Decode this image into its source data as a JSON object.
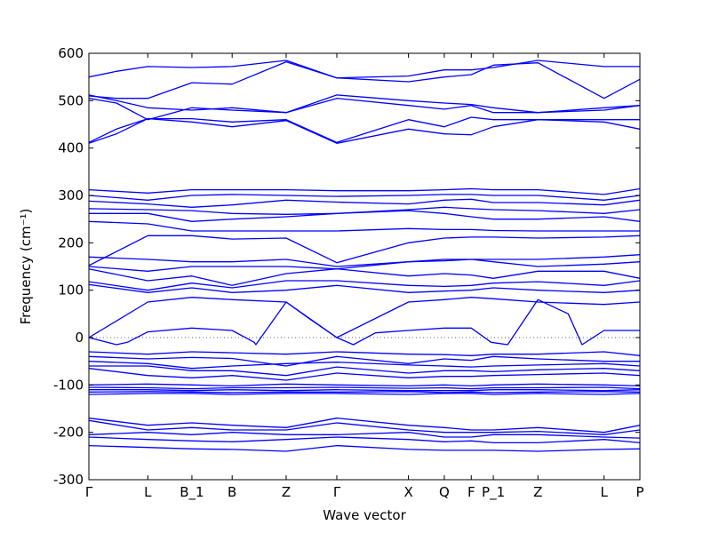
{
  "chart_data": {
    "type": "line",
    "xlabel": "Wave vector",
    "ylabel": "Frequency (cm⁻¹)",
    "ylim": [
      -300,
      600
    ],
    "yticks": [
      -300,
      -200,
      -100,
      0,
      100,
      200,
      300,
      400,
      500,
      600
    ],
    "x_ticks": [
      {
        "label": "Γ",
        "x": 0.0
      },
      {
        "label": "L",
        "x": 0.107
      },
      {
        "label": "B_1",
        "x": 0.187
      },
      {
        "label": "B",
        "x": 0.26
      },
      {
        "label": "Z",
        "x": 0.358
      },
      {
        "label": "Γ",
        "x": 0.45
      },
      {
        "label": "X",
        "x": 0.58
      },
      {
        "label": "Q",
        "x": 0.645
      },
      {
        "label": "F",
        "x": 0.694
      },
      {
        "label": "P_1",
        "x": 0.734
      },
      {
        "label": "Z",
        "x": 0.815
      },
      {
        "label": "L",
        "x": 0.935
      },
      {
        "label": "P",
        "x": 1.0
      }
    ],
    "zero_line": true,
    "grid": false,
    "line_color": "#0000ff",
    "series": [
      {
        "x": [
          0,
          0.05,
          0.107,
          0.187,
          0.26,
          0.358,
          0.45,
          0.58,
          0.645,
          0.694,
          0.734,
          0.815,
          0.935,
          1.0
        ],
        "y": [
          550,
          562,
          572,
          570,
          572,
          585,
          548,
          552,
          565,
          565,
          570,
          585,
          572,
          572
        ]
      },
      {
        "x": [
          0,
          0.05,
          0.107,
          0.187,
          0.26,
          0.358,
          0.45,
          0.58,
          0.645,
          0.694,
          0.734,
          0.815,
          0.935,
          1.0
        ],
        "y": [
          510,
          505,
          505,
          538,
          535,
          582,
          548,
          540,
          550,
          555,
          575,
          580,
          505,
          545
        ]
      },
      {
        "x": [
          0,
          0.05,
          0.107,
          0.187,
          0.26,
          0.358,
          0.45,
          0.58,
          0.645,
          0.694,
          0.734,
          0.815,
          0.935,
          1.0
        ],
        "y": [
          512,
          500,
          485,
          480,
          485,
          475,
          512,
          500,
          495,
          492,
          485,
          475,
          485,
          490
        ]
      },
      {
        "x": [
          0,
          0.05,
          0.107,
          0.187,
          0.26,
          0.358,
          0.45,
          0.58,
          0.645,
          0.694,
          0.734,
          0.815,
          0.935,
          1.0
        ],
        "y": [
          505,
          495,
          460,
          485,
          480,
          475,
          505,
          490,
          482,
          490,
          475,
          475,
          480,
          490
        ]
      },
      {
        "x": [
          0,
          0.05,
          0.107,
          0.187,
          0.26,
          0.358,
          0.45,
          0.58,
          0.645,
          0.694,
          0.734,
          0.815,
          0.935,
          1.0
        ],
        "y": [
          412,
          440,
          462,
          462,
          455,
          460,
          412,
          460,
          445,
          465,
          460,
          460,
          460,
          460
        ]
      },
      {
        "x": [
          0,
          0.05,
          0.107,
          0.187,
          0.26,
          0.358,
          0.45,
          0.58,
          0.645,
          0.694,
          0.734,
          0.815,
          0.935,
          1.0
        ],
        "y": [
          410,
          430,
          462,
          455,
          445,
          458,
          410,
          440,
          430,
          428,
          445,
          460,
          455,
          440
        ]
      },
      {
        "x": [
          0,
          0.107,
          0.187,
          0.26,
          0.358,
          0.45,
          0.58,
          0.645,
          0.694,
          0.734,
          0.815,
          0.935,
          1.0
        ],
        "y": [
          312,
          305,
          312,
          312,
          312,
          310,
          310,
          312,
          314,
          312,
          312,
          302,
          314
        ]
      },
      {
        "x": [
          0,
          0.107,
          0.187,
          0.26,
          0.358,
          0.45,
          0.58,
          0.645,
          0.694,
          0.734,
          0.815,
          0.935,
          1.0
        ],
        "y": [
          300,
          290,
          300,
          302,
          300,
          298,
          300,
          302,
          302,
          300,
          300,
          290,
          300
        ]
      },
      {
        "x": [
          0,
          0.107,
          0.187,
          0.26,
          0.358,
          0.45,
          0.58,
          0.645,
          0.694,
          0.734,
          0.815,
          0.935,
          1.0
        ],
        "y": [
          288,
          282,
          275,
          280,
          290,
          286,
          282,
          290,
          292,
          285,
          285,
          280,
          290
        ]
      },
      {
        "x": [
          0,
          0.107,
          0.187,
          0.26,
          0.358,
          0.45,
          0.58,
          0.645,
          0.694,
          0.734,
          0.815,
          0.935,
          1.0
        ],
        "y": [
          272,
          270,
          268,
          262,
          260,
          262,
          270,
          275,
          272,
          270,
          268,
          262,
          270
        ]
      },
      {
        "x": [
          0,
          0.107,
          0.187,
          0.26,
          0.358,
          0.45,
          0.58,
          0.645,
          0.694,
          0.734,
          0.815,
          0.935,
          1.0
        ],
        "y": [
          262,
          262,
          245,
          250,
          255,
          262,
          268,
          262,
          255,
          250,
          250,
          255,
          245
        ]
      },
      {
        "x": [
          0,
          0.107,
          0.187,
          0.26,
          0.358,
          0.45,
          0.58,
          0.645,
          0.694,
          0.734,
          0.815,
          0.935,
          1.0
        ],
        "y": [
          245,
          240,
          225,
          225,
          225,
          225,
          230,
          228,
          228,
          226,
          225,
          225,
          225
        ]
      },
      {
        "x": [
          0,
          0.107,
          0.187,
          0.26,
          0.358,
          0.45,
          0.58,
          0.645,
          0.694,
          0.734,
          0.815,
          0.935,
          1.0
        ],
        "y": [
          152,
          215,
          215,
          208,
          210,
          158,
          200,
          210,
          212,
          212,
          210,
          212,
          215
        ]
      },
      {
        "x": [
          0,
          0.107,
          0.187,
          0.26,
          0.358,
          0.45,
          0.58,
          0.645,
          0.694,
          0.734,
          0.815,
          0.935,
          1.0
        ],
        "y": [
          170,
          165,
          160,
          160,
          165,
          150,
          160,
          162,
          165,
          165,
          165,
          170,
          175
        ]
      },
      {
        "x": [
          0,
          0.107,
          0.187,
          0.26,
          0.358,
          0.45,
          0.58,
          0.645,
          0.694,
          0.734,
          0.815,
          0.935,
          1.0
        ],
        "y": [
          150,
          140,
          150,
          150,
          150,
          145,
          160,
          165,
          165,
          160,
          150,
          155,
          160
        ]
      },
      {
        "x": [
          0,
          0.107,
          0.187,
          0.26,
          0.358,
          0.45,
          0.58,
          0.645,
          0.694,
          0.734,
          0.815,
          0.935,
          1.0
        ],
        "y": [
          145,
          120,
          130,
          110,
          135,
          145,
          130,
          135,
          132,
          125,
          140,
          140,
          125
        ]
      },
      {
        "x": [
          0,
          0.107,
          0.187,
          0.26,
          0.358,
          0.45,
          0.58,
          0.645,
          0.694,
          0.734,
          0.815,
          0.935,
          1.0
        ],
        "y": [
          118,
          100,
          115,
          105,
          120,
          120,
          110,
          108,
          110,
          115,
          118,
          110,
          120
        ]
      },
      {
        "x": [
          0,
          0.107,
          0.187,
          0.26,
          0.358,
          0.45,
          0.58,
          0.645,
          0.694,
          0.734,
          0.815,
          0.935,
          1.0
        ],
        "y": [
          112,
          95,
          105,
          95,
          100,
          110,
          95,
          98,
          100,
          105,
          100,
          95,
          100
        ]
      },
      {
        "x": [
          0,
          0.107,
          0.187,
          0.26,
          0.358,
          0.4,
          0.45,
          0.58,
          0.645,
          0.694,
          0.734,
          0.815,
          0.935,
          1.0
        ],
        "y": [
          0,
          75,
          85,
          80,
          75,
          40,
          0,
          75,
          80,
          85,
          82,
          75,
          70,
          75
        ]
      },
      {
        "x": [
          0,
          0.05,
          0.07,
          0.107,
          0.187,
          0.26,
          0.3,
          0.303,
          0.358,
          0.45,
          0.48,
          0.52,
          0.58,
          0.645,
          0.694,
          0.73,
          0.76,
          0.815,
          0.87,
          0.895,
          0.935,
          1.0
        ],
        "y": [
          0,
          -15,
          -10,
          12,
          20,
          15,
          -10,
          -15,
          75,
          0,
          -15,
          10,
          15,
          20,
          20,
          -10,
          -15,
          80,
          50,
          -15,
          15,
          15
        ]
      },
      {
        "x": [
          0,
          0.107,
          0.187,
          0.26,
          0.358,
          0.45,
          0.58,
          0.645,
          0.694,
          0.734,
          0.815,
          0.935,
          1.0
        ],
        "y": [
          -30,
          -35,
          -30,
          -32,
          -35,
          -30,
          -35,
          -36,
          -38,
          -35,
          -35,
          -30,
          -38
        ]
      },
      {
        "x": [
          0,
          0.107,
          0.187,
          0.26,
          0.358,
          0.45,
          0.58,
          0.645,
          0.694,
          0.734,
          0.815,
          0.935,
          1.0
        ],
        "y": [
          -40,
          -45,
          -42,
          -44,
          -60,
          -40,
          -55,
          -45,
          -48,
          -40,
          -45,
          -50,
          -50
        ]
      },
      {
        "x": [
          0,
          0.107,
          0.187,
          0.26,
          0.358,
          0.45,
          0.58,
          0.645,
          0.694,
          0.734,
          0.815,
          0.935,
          1.0
        ],
        "y": [
          -50,
          -55,
          -65,
          -60,
          -55,
          -52,
          -58,
          -60,
          -62,
          -60,
          -58,
          -55,
          -60
        ]
      },
      {
        "x": [
          0,
          0.107,
          0.187,
          0.26,
          0.358,
          0.45,
          0.58,
          0.645,
          0.694,
          0.734,
          0.815,
          0.935,
          1.0
        ],
        "y": [
          -60,
          -60,
          -70,
          -70,
          -80,
          -62,
          -75,
          -70,
          -70,
          -72,
          -68,
          -65,
          -70
        ]
      },
      {
        "x": [
          0,
          0.107,
          0.187,
          0.26,
          0.358,
          0.45,
          0.58,
          0.645,
          0.694,
          0.734,
          0.815,
          0.935,
          1.0
        ],
        "y": [
          -65,
          -80,
          -85,
          -80,
          -90,
          -75,
          -85,
          -82,
          -82,
          -80,
          -78,
          -75,
          -80
        ]
      },
      {
        "x": [
          0,
          0.107,
          0.187,
          0.26,
          0.358,
          0.45,
          0.58,
          0.645,
          0.694,
          0.734,
          0.815,
          0.935,
          1.0
        ],
        "y": [
          -100,
          -98,
          -100,
          -102,
          -98,
          -100,
          -102,
          -100,
          -102,
          -100,
          -98,
          -100,
          -102
        ]
      },
      {
        "x": [
          0,
          0.107,
          0.187,
          0.26,
          0.358,
          0.45,
          0.58,
          0.645,
          0.694,
          0.734,
          0.815,
          0.935,
          1.0
        ],
        "y": [
          -105,
          -106,
          -108,
          -106,
          -106,
          -105,
          -107,
          -106,
          -108,
          -106,
          -106,
          -105,
          -108
        ]
      },
      {
        "x": [
          0,
          0.107,
          0.187,
          0.26,
          0.358,
          0.45,
          0.58,
          0.645,
          0.694,
          0.734,
          0.815,
          0.935,
          1.0
        ],
        "y": [
          -110,
          -110,
          -112,
          -110,
          -112,
          -110,
          -112,
          -112,
          -112,
          -110,
          -110,
          -112,
          -110
        ]
      },
      {
        "x": [
          0,
          0.107,
          0.187,
          0.26,
          0.358,
          0.45,
          0.58,
          0.645,
          0.694,
          0.734,
          0.815,
          0.935,
          1.0
        ],
        "y": [
          -115,
          -114,
          -115,
          -116,
          -115,
          -115,
          -114,
          -116,
          -115,
          -116,
          -115,
          -114,
          -115
        ]
      },
      {
        "x": [
          0,
          0.107,
          0.187,
          0.26,
          0.358,
          0.45,
          0.58,
          0.645,
          0.694,
          0.734,
          0.815,
          0.935,
          1.0
        ],
        "y": [
          -120,
          -118,
          -118,
          -120,
          -118,
          -118,
          -120,
          -118,
          -118,
          -120,
          -118,
          -120,
          -118
        ]
      },
      {
        "x": [
          0,
          0.107,
          0.187,
          0.26,
          0.358,
          0.45,
          0.58,
          0.645,
          0.694,
          0.734,
          0.815,
          0.935,
          1.0
        ],
        "y": [
          -170,
          -185,
          -180,
          -185,
          -190,
          -170,
          -185,
          -190,
          -195,
          -195,
          -190,
          -200,
          -185
        ]
      },
      {
        "x": [
          0,
          0.107,
          0.187,
          0.26,
          0.358,
          0.45,
          0.58,
          0.645,
          0.694,
          0.734,
          0.815,
          0.935,
          1.0
        ],
        "y": [
          -175,
          -195,
          -190,
          -195,
          -195,
          -180,
          -195,
          -200,
          -200,
          -200,
          -198,
          -205,
          -195
        ]
      },
      {
        "x": [
          0,
          0.107,
          0.187,
          0.26,
          0.358,
          0.45,
          0.58,
          0.645,
          0.694,
          0.734,
          0.815,
          0.935,
          1.0
        ],
        "y": [
          -205,
          -200,
          -205,
          -200,
          -205,
          -205,
          -200,
          -210,
          -210,
          -205,
          -205,
          -210,
          -212
        ]
      },
      {
        "x": [
          0,
          0.107,
          0.187,
          0.26,
          0.358,
          0.45,
          0.58,
          0.645,
          0.694,
          0.734,
          0.815,
          0.935,
          1.0
        ],
        "y": [
          -210,
          -215,
          -218,
          -220,
          -215,
          -210,
          -215,
          -220,
          -218,
          -222,
          -222,
          -215,
          -222
        ]
      },
      {
        "x": [
          0,
          0.107,
          0.187,
          0.26,
          0.358,
          0.45,
          0.58,
          0.645,
          0.694,
          0.734,
          0.815,
          0.935,
          1.0
        ],
        "y": [
          -228,
          -232,
          -235,
          -236,
          -240,
          -228,
          -236,
          -238,
          -238,
          -238,
          -240,
          -236,
          -235
        ]
      }
    ]
  }
}
